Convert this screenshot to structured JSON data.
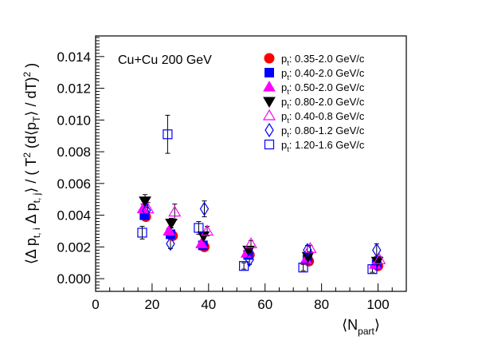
{
  "chart_data": {
    "type": "scatter",
    "title": "",
    "annotation": "Cu+Cu 200 GeV",
    "xlabel": "⟨N_part⟩",
    "ylabel": "⟨Δp_t,i Δp_t,j⟩ / (T² (d⟨p_T⟩/dT)²)",
    "xlim": [
      0,
      110
    ],
    "ylim": [
      -0.0008,
      0.0153
    ],
    "xticks": [
      "0",
      "20",
      "40",
      "60",
      "80",
      "100"
    ],
    "yticks": [
      "0.000",
      "0.002",
      "0.004",
      "0.006",
      "0.008",
      "0.010",
      "0.012",
      "0.014"
    ],
    "grid": false,
    "legend_position": "top-right",
    "series": [
      {
        "name": "p_t: 0.35-2.0 GeV/c",
        "marker": "circle",
        "color": "#ff0000",
        "filled": true,
        "points": [
          {
            "x": 17.8,
            "y": 0.0039,
            "err": 0.0002
          },
          {
            "x": 27.3,
            "y": 0.0027,
            "err": 0.0002
          },
          {
            "x": 38.5,
            "y": 0.002,
            "err": 0.0001
          },
          {
            "x": 54.5,
            "y": 0.0015,
            "err": 0.0001
          },
          {
            "x": 75.5,
            "y": 0.0011,
            "err": 0.0001
          },
          {
            "x": 100.0,
            "y": 0.0008,
            "err": 0.0001
          }
        ]
      },
      {
        "name": "p_t: 0.40-2.0 GeV/c",
        "marker": "square",
        "color": "#0000ff",
        "filled": true,
        "points": [
          {
            "x": 17.3,
            "y": 0.004,
            "err": 0.0002
          },
          {
            "x": 26.5,
            "y": 0.0028,
            "err": 0.0002
          },
          {
            "x": 38.0,
            "y": 0.0021,
            "err": 0.0001
          },
          {
            "x": 54.0,
            "y": 0.0015,
            "err": 0.0001
          },
          {
            "x": 75.0,
            "y": 0.0012,
            "err": 0.0001
          },
          {
            "x": 99.5,
            "y": 0.0009,
            "err": 0.0001
          }
        ]
      },
      {
        "name": "p_t: 0.50-2.0 GeV/c",
        "marker": "triangle-up",
        "color": "#ff00ff",
        "filled": true,
        "points": [
          {
            "x": 16.8,
            "y": 0.0044,
            "err": 0.0003
          },
          {
            "x": 26.0,
            "y": 0.003,
            "err": 0.0002
          },
          {
            "x": 37.5,
            "y": 0.0022,
            "err": 0.0001
          },
          {
            "x": 53.5,
            "y": 0.0016,
            "err": 0.0001
          },
          {
            "x": 74.5,
            "y": 0.0012,
            "err": 0.0001
          },
          {
            "x": 99.0,
            "y": 0.0009,
            "err": 0.0001
          }
        ]
      },
      {
        "name": "p_t: 0.80-2.0 GeV/c",
        "marker": "triangle-down",
        "color": "#000000",
        "filled": true,
        "points": [
          {
            "x": 17.5,
            "y": 0.0049,
            "err": 0.0004
          },
          {
            "x": 26.8,
            "y": 0.0035,
            "err": 0.0003
          },
          {
            "x": 38.2,
            "y": 0.0027,
            "err": 0.0002
          },
          {
            "x": 54.2,
            "y": 0.0018,
            "err": 0.0002
          },
          {
            "x": 75.2,
            "y": 0.0014,
            "err": 0.0002
          },
          {
            "x": 99.7,
            "y": 0.0011,
            "err": 0.0001
          }
        ]
      },
      {
        "name": "p_t: 0.40-0.8 GeV/c",
        "marker": "triangle-up",
        "color": "#ff00ff",
        "filled": false,
        "points": [
          {
            "x": 18.5,
            "y": 0.0044,
            "err": 0.0004
          },
          {
            "x": 28.0,
            "y": 0.0042,
            "err": 0.0005
          },
          {
            "x": 39.5,
            "y": 0.003,
            "err": 0.0003
          },
          {
            "x": 55.0,
            "y": 0.0022,
            "err": 0.0002
          },
          {
            "x": 76.0,
            "y": 0.0019,
            "err": 0.0002
          },
          {
            "x": 100.5,
            "y": 0.0012,
            "err": 0.0002
          }
        ]
      },
      {
        "name": "p_t: 0.80-1.2 GeV/c",
        "marker": "diamond",
        "color": "#0000ff",
        "filled": false,
        "points": [
          {
            "x": 18.0,
            "y": 0.0043,
            "err": 0.0004
          },
          {
            "x": 26.5,
            "y": 0.0022,
            "err": 0.0003
          },
          {
            "x": 38.5,
            "y": 0.0044,
            "err": 0.0005
          },
          {
            "x": 54.5,
            "y": 0.0012,
            "err": 0.0003
          },
          {
            "x": 75.0,
            "y": 0.0018,
            "err": 0.0003
          },
          {
            "x": 99.5,
            "y": 0.0018,
            "err": 0.0004
          }
        ]
      },
      {
        "name": "p_t: 1.20-1.6 GeV/c",
        "marker": "square",
        "color": "#0000ff",
        "filled": false,
        "points": [
          {
            "x": 16.5,
            "y": 0.0029,
            "err": 0.0004
          },
          {
            "x": 25.5,
            "y": 0.0091,
            "err": 0.0012
          },
          {
            "x": 36.5,
            "y": 0.0032,
            "err": 0.0004
          },
          {
            "x": 52.5,
            "y": 0.0008,
            "err": 0.0002
          },
          {
            "x": 73.5,
            "y": 0.0007,
            "err": 0.0002
          },
          {
            "x": 98.0,
            "y": 0.0006,
            "err": 0.0002
          }
        ]
      }
    ]
  }
}
